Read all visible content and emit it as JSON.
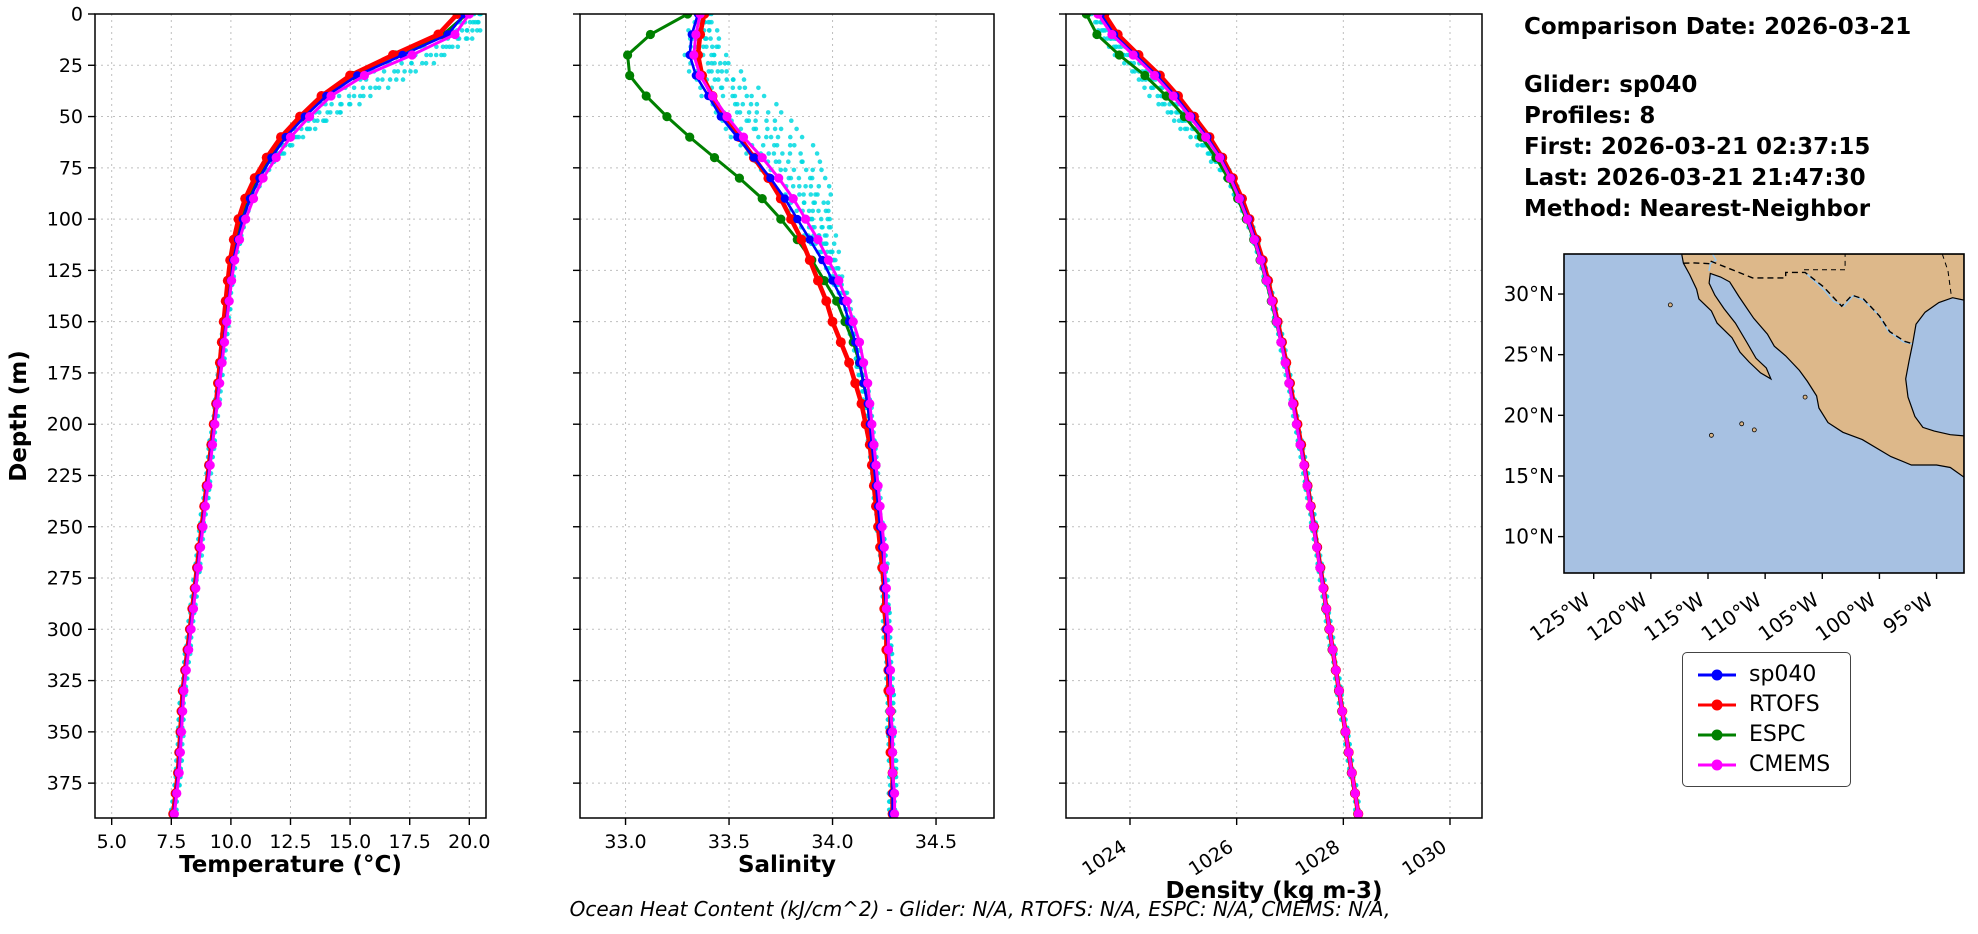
{
  "info": {
    "comparison_date": "Comparison Date: 2026-03-21",
    "glider": "Glider: sp040",
    "profiles": "Profiles: 8",
    "first": "First: 2026-03-21 02:37:15",
    "last": "Last: 2026-03-21 21:47:30",
    "method": "Method: Nearest-Neighbor"
  },
  "caption": "Ocean Heat Content (kJ/cm^2) - Glider: N/A,  RTOFS: N/A,  ESPC: N/A,  CMEMS: N/A,",
  "legend": {
    "entries": [
      {
        "label": "sp040",
        "color": "#0000ff"
      },
      {
        "label": "RTOFS",
        "color": "#ff0000"
      },
      {
        "label": "ESPC",
        "color": "#008000"
      },
      {
        "label": "CMEMS",
        "color": "#ff00ff"
      }
    ]
  },
  "chart_data": {
    "type": "line",
    "profile_orientation": "depth-vertical",
    "ylabel": "Depth (m)",
    "ylim": [
      0,
      392
    ],
    "yticks": [
      0,
      25,
      50,
      75,
      100,
      125,
      150,
      175,
      200,
      225,
      250,
      275,
      300,
      325,
      350,
      375
    ],
    "depths_m": [
      0,
      10,
      20,
      30,
      40,
      50,
      60,
      70,
      80,
      90,
      100,
      110,
      120,
      130,
      140,
      150,
      160,
      170,
      180,
      190,
      200,
      210,
      220,
      230,
      240,
      250,
      260,
      270,
      280,
      290,
      300,
      310,
      320,
      330,
      340,
      350,
      360,
      370,
      380,
      390
    ],
    "series_order": [
      "ESPC",
      "RTOFS",
      "sp040",
      "CMEMS"
    ],
    "colors": {
      "sp040": "#0000ff",
      "RTOFS": "#ff0000",
      "ESPC": "#008000",
      "CMEMS": "#ff00ff",
      "scatter": "#00d9e0"
    },
    "scatter_profiles": 8,
    "seed": 42,
    "plots": [
      {
        "id": "temperature",
        "xlabel": "Temperature (°C)",
        "xlim": [
          4.3,
          20.7
        ],
        "xticks": [
          5.0,
          7.5,
          10.0,
          12.5,
          15.0,
          17.5,
          20.0
        ],
        "tick_decimals": 1,
        "rotate_ticks": false,
        "series": {
          "sp040": [
            19.8,
            19.1,
            17.2,
            15.3,
            14.0,
            13.1,
            12.3,
            11.7,
            11.2,
            10.8,
            10.5,
            10.3,
            10.1,
            10.0,
            9.9,
            9.8,
            9.7,
            9.6,
            9.5,
            9.4,
            9.3,
            9.2,
            9.1,
            9.0,
            8.9,
            8.8,
            8.7,
            8.6,
            8.5,
            8.4,
            8.3,
            8.2,
            8.1,
            8.0,
            7.95,
            7.9,
            7.85,
            7.8,
            7.7,
            7.6
          ],
          "RTOFS": [
            19.5,
            18.7,
            16.8,
            15.0,
            13.8,
            12.9,
            12.1,
            11.5,
            11.0,
            10.6,
            10.32,
            10.12,
            9.97,
            9.87,
            9.78,
            9.7,
            9.62,
            9.54,
            9.46,
            9.38,
            9.28,
            9.18,
            9.08,
            8.98,
            8.88,
            8.78,
            8.68,
            8.58,
            8.48,
            8.38,
            8.28,
            8.18,
            8.08,
            7.98,
            7.93,
            7.88,
            7.83,
            7.78,
            7.68,
            7.58
          ],
          "ESPC": [
            19.9,
            18.9,
            16.9,
            15.1,
            13.9,
            13.0,
            12.2,
            11.6,
            11.1,
            10.72,
            10.45,
            10.24,
            10.06,
            9.95,
            9.85,
            9.76,
            9.67,
            9.58,
            9.49,
            9.4,
            9.3,
            9.2,
            9.1,
            9.0,
            8.9,
            8.8,
            8.7,
            8.6,
            8.5,
            8.4,
            8.3,
            8.2,
            8.1,
            8.0,
            7.95,
            7.9,
            7.85,
            7.8,
            7.7,
            7.6
          ],
          "CMEMS": [
            20.0,
            19.4,
            17.6,
            15.6,
            14.2,
            13.3,
            12.5,
            11.9,
            11.35,
            10.95,
            10.62,
            10.36,
            10.16,
            10.03,
            9.93,
            9.83,
            9.73,
            9.63,
            9.53,
            9.43,
            9.33,
            9.23,
            9.13,
            9.03,
            8.93,
            8.83,
            8.73,
            8.63,
            8.53,
            8.43,
            8.33,
            8.23,
            8.13,
            8.03,
            7.98,
            7.93,
            7.88,
            7.83,
            7.73,
            7.63
          ]
        },
        "scatter": {
          "center": 30,
          "sigma": 20,
          "amps": [
            0.3,
            0.7,
            1.1,
            1.6,
            2.1,
            0.1,
            1.3,
            1.8
          ],
          "noise": 0.12
        }
      },
      {
        "id": "salinity",
        "xlabel": "Salinity",
        "xlim": [
          32.78,
          34.78
        ],
        "xticks": [
          33.0,
          33.5,
          34.0,
          34.5
        ],
        "tick_decimals": 1,
        "rotate_ticks": false,
        "series": {
          "sp040": [
            33.35,
            33.32,
            33.31,
            33.34,
            33.4,
            33.46,
            33.54,
            33.62,
            33.7,
            33.77,
            33.83,
            33.89,
            33.95,
            34.0,
            34.05,
            34.08,
            34.11,
            34.13,
            34.15,
            34.17,
            34.18,
            34.19,
            34.2,
            34.21,
            34.22,
            34.23,
            34.24,
            34.25,
            34.25,
            34.26,
            34.26,
            34.27,
            34.27,
            34.28,
            34.28,
            34.28,
            34.29,
            34.29,
            34.29,
            34.29
          ],
          "RTOFS": [
            33.38,
            33.36,
            33.35,
            33.37,
            33.42,
            33.48,
            33.55,
            33.62,
            33.69,
            33.75,
            33.8,
            33.85,
            33.89,
            33.93,
            33.97,
            34.0,
            34.04,
            34.08,
            34.11,
            34.14,
            34.16,
            34.18,
            34.19,
            34.2,
            34.21,
            34.22,
            34.23,
            34.24,
            34.25,
            34.25,
            34.26,
            34.26,
            34.27,
            34.27,
            34.28,
            34.28,
            34.28,
            34.29,
            34.29,
            34.29
          ],
          "ESPC": [
            33.3,
            33.12,
            33.01,
            33.02,
            33.1,
            33.2,
            33.31,
            33.43,
            33.55,
            33.66,
            33.75,
            33.83,
            33.9,
            33.96,
            34.02,
            34.06,
            34.1,
            34.13,
            34.15,
            34.17,
            34.18,
            34.2,
            34.21,
            34.21,
            34.22,
            34.23,
            34.24,
            34.25,
            34.25,
            34.26,
            34.26,
            34.27,
            34.27,
            34.28,
            34.28,
            34.28,
            34.29,
            34.29,
            34.29,
            34.29
          ],
          "CMEMS": [
            33.36,
            33.34,
            33.33,
            33.36,
            33.42,
            33.49,
            33.57,
            33.66,
            33.74,
            33.81,
            33.87,
            33.93,
            33.98,
            34.03,
            34.07,
            34.1,
            34.13,
            34.15,
            34.17,
            34.18,
            34.19,
            34.2,
            34.21,
            34.22,
            34.23,
            34.24,
            34.25,
            34.25,
            34.26,
            34.26,
            34.27,
            34.27,
            34.28,
            34.28,
            34.28,
            34.29,
            34.29,
            34.29,
            34.3,
            34.3
          ]
        },
        "scatter": {
          "center": 60,
          "sigma": 35,
          "amps": [
            0.04,
            0.1,
            0.17,
            0.25,
            0.32,
            -0.02,
            0.13,
            0.21
          ],
          "noise": 0.018
        }
      },
      {
        "id": "density",
        "xlabel": "Density (kg m-3)",
        "xlim": [
          1022.8,
          1030.6
        ],
        "xticks": [
          1024,
          1026,
          1028,
          1030
        ],
        "tick_decimals": 0,
        "rotate_ticks": true,
        "series": {
          "sp040": [
            1023.45,
            1023.7,
            1024.1,
            1024.5,
            1024.85,
            1025.15,
            1025.45,
            1025.7,
            1025.9,
            1026.07,
            1026.22,
            1026.35,
            1026.47,
            1026.57,
            1026.67,
            1026.76,
            1026.84,
            1026.92,
            1026.99,
            1027.06,
            1027.13,
            1027.2,
            1027.27,
            1027.33,
            1027.39,
            1027.45,
            1027.51,
            1027.57,
            1027.63,
            1027.68,
            1027.74,
            1027.8,
            1027.86,
            1027.92,
            1027.98,
            1028.04,
            1028.1,
            1028.16,
            1028.22,
            1028.28
          ],
          "RTOFS": [
            1023.52,
            1023.77,
            1024.16,
            1024.56,
            1024.9,
            1025.2,
            1025.49,
            1025.73,
            1025.93,
            1026.1,
            1026.24,
            1026.37,
            1026.49,
            1026.59,
            1026.68,
            1026.77,
            1026.85,
            1026.93,
            1027.0,
            1027.07,
            1027.14,
            1027.21,
            1027.27,
            1027.33,
            1027.39,
            1027.45,
            1027.51,
            1027.57,
            1027.63,
            1027.68,
            1027.74,
            1027.8,
            1027.86,
            1027.92,
            1027.98,
            1028.04,
            1028.1,
            1028.16,
            1028.22,
            1028.28
          ],
          "ESPC": [
            1023.18,
            1023.38,
            1023.8,
            1024.28,
            1024.68,
            1025.02,
            1025.34,
            1025.61,
            1025.84,
            1026.02,
            1026.18,
            1026.32,
            1026.44,
            1026.55,
            1026.65,
            1026.74,
            1026.83,
            1026.91,
            1026.98,
            1027.05,
            1027.12,
            1027.19,
            1027.26,
            1027.32,
            1027.38,
            1027.44,
            1027.5,
            1027.56,
            1027.62,
            1027.67,
            1027.73,
            1027.79,
            1027.85,
            1027.91,
            1027.97,
            1028.03,
            1028.09,
            1028.15,
            1028.21,
            1028.27
          ],
          "CMEMS": [
            1023.4,
            1023.66,
            1024.06,
            1024.46,
            1024.81,
            1025.12,
            1025.42,
            1025.68,
            1025.88,
            1026.05,
            1026.2,
            1026.33,
            1026.45,
            1026.56,
            1026.66,
            1026.75,
            1026.83,
            1026.91,
            1026.98,
            1027.05,
            1027.12,
            1027.19,
            1027.26,
            1027.32,
            1027.38,
            1027.44,
            1027.5,
            1027.56,
            1027.62,
            1027.68,
            1027.74,
            1027.8,
            1027.86,
            1027.92,
            1027.98,
            1028.04,
            1028.1,
            1028.16,
            1028.22,
            1028.28
          ]
        },
        "scatter": {
          "center": 38,
          "sigma": 26,
          "amps": [
            -0.06,
            -0.14,
            -0.24,
            -0.34,
            -0.44,
            0.02,
            -0.18,
            -0.3
          ],
          "noise": 0.045
        }
      }
    ]
  },
  "map": {
    "extent": {
      "lon_min": -127.6,
      "lon_max": -92.6,
      "lat_min": 7.0,
      "lat_max": 33.3
    },
    "lat_ticks": [
      10,
      15,
      20,
      25,
      30
    ],
    "lat_tick_labels": [
      "10°N",
      "15°N",
      "20°N",
      "25°N",
      "30°N"
    ],
    "lon_ticks": [
      -125,
      -120,
      -115,
      -110,
      -105,
      -100,
      -95
    ],
    "lon_tick_labels": [
      "125°W",
      "120°W",
      "115°W",
      "110°W",
      "105°W",
      "100°W",
      "95°W"
    ],
    "ocean_color": "#a7c1e2",
    "land_color": "#ddb88a",
    "river_color": "#9ec8e8",
    "land": [
      [
        -117.3,
        33.3
      ],
      [
        -117.15,
        32.54
      ],
      [
        -116.6,
        31.6
      ],
      [
        -116.0,
        30.4
      ],
      [
        -115.8,
        29.6
      ],
      [
        -114.7,
        28.6
      ],
      [
        -114.2,
        27.6
      ],
      [
        -112.9,
        26.4
      ],
      [
        -112.2,
        25.2
      ],
      [
        -111.4,
        24.4
      ],
      [
        -110.4,
        23.5
      ],
      [
        -109.5,
        23.0
      ],
      [
        -109.9,
        23.9
      ],
      [
        -110.8,
        24.7
      ],
      [
        -111.6,
        26.0
      ],
      [
        -112.6,
        27.6
      ],
      [
        -113.6,
        28.8
      ],
      [
        -114.4,
        29.9
      ],
      [
        -114.9,
        30.9
      ],
      [
        -114.8,
        31.7
      ],
      [
        -113.9,
        31.4
      ],
      [
        -113.1,
        31.0
      ],
      [
        -112.3,
        29.8
      ],
      [
        -111.0,
        28.0
      ],
      [
        -109.8,
        26.7
      ],
      [
        -109.2,
        25.7
      ],
      [
        -108.2,
        24.9
      ],
      [
        -107.0,
        23.7
      ],
      [
        -106.3,
        22.8
      ],
      [
        -105.5,
        21.6
      ],
      [
        -105.3,
        20.6
      ],
      [
        -104.5,
        19.4
      ],
      [
        -103.2,
        18.6
      ],
      [
        -101.5,
        18.0
      ],
      [
        -99.0,
        16.6
      ],
      [
        -97.2,
        15.9
      ],
      [
        -95.0,
        15.9
      ],
      [
        -93.8,
        15.7
      ],
      [
        -92.6,
        14.9
      ],
      [
        -92.6,
        18.3
      ],
      [
        -93.8,
        18.4
      ],
      [
        -95.2,
        18.7
      ],
      [
        -96.2,
        19.0
      ],
      [
        -96.9,
        19.9
      ],
      [
        -97.5,
        21.5
      ],
      [
        -97.7,
        23.0
      ],
      [
        -97.4,
        24.5
      ],
      [
        -97.1,
        25.9
      ],
      [
        -96.8,
        27.5
      ],
      [
        -96.0,
        28.5
      ],
      [
        -94.8,
        29.3
      ],
      [
        -93.6,
        29.7
      ],
      [
        -92.6,
        29.5
      ],
      [
        -92.6,
        33.3
      ]
    ],
    "border_dashed": [
      [
        -117.15,
        32.54
      ],
      [
        -116.2,
        32.57
      ],
      [
        -114.8,
        32.5
      ],
      [
        -114.8,
        32.72
      ],
      [
        -111.1,
        31.33
      ],
      [
        -108.2,
        31.33
      ],
      [
        -108.2,
        31.78
      ],
      [
        -106.5,
        31.78
      ],
      [
        -104.9,
        30.6
      ],
      [
        -103.3,
        29.0
      ],
      [
        -102.4,
        29.9
      ],
      [
        -101.4,
        29.6
      ],
      [
        -100.0,
        28.2
      ],
      [
        -99.1,
        26.9
      ],
      [
        -97.8,
        26.1
      ],
      [
        -97.1,
        25.9
      ]
    ],
    "state_lines": [
      [
        [
          -106.6,
          32.0
        ],
        [
          -103.0,
          32.0
        ],
        [
          -103.0,
          33.3
        ]
      ],
      [
        [
          -94.5,
          33.3
        ],
        [
          -94.0,
          31.9
        ],
        [
          -93.7,
          29.8
        ]
      ]
    ],
    "rivers": [
      [
        [
          -106.5,
          31.78
        ],
        [
          -105.6,
          31.0
        ],
        [
          -104.8,
          30.3
        ],
        [
          -104.0,
          29.4
        ],
        [
          -103.1,
          29.0
        ],
        [
          -102.3,
          29.85
        ],
        [
          -101.4,
          29.5
        ],
        [
          -100.1,
          28.3
        ],
        [
          -99.2,
          26.9
        ],
        [
          -97.9,
          26.05
        ],
        [
          -97.15,
          25.9
        ]
      ],
      [
        [
          -114.6,
          33.3
        ],
        [
          -114.3,
          32.8
        ],
        [
          -114.8,
          32.5
        ],
        [
          -114.9,
          31.9
        ]
      ]
    ],
    "islands": [
      [
        -118.3,
        29.1
      ],
      [
        -110.95,
        18.8
      ],
      [
        -114.7,
        18.35
      ],
      [
        -106.5,
        21.5
      ],
      [
        -112.05,
        19.3
      ]
    ]
  }
}
